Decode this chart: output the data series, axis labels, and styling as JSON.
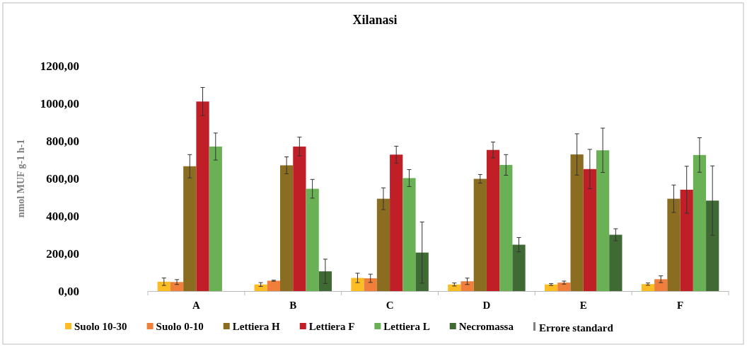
{
  "chart_data": {
    "type": "bar",
    "title": "Xilanasi",
    "ylabel": "nmol MUF g-1 h-1",
    "categories": [
      "A",
      "B",
      "C",
      "D",
      "E",
      "F"
    ],
    "series": [
      {
        "name": "Suolo 10-30",
        "color": "#fbbd23",
        "values": [
          50,
          35,
          70,
          35,
          35,
          37
        ],
        "errors": [
          20,
          10,
          25,
          8,
          5,
          6
        ]
      },
      {
        "name": "Suolo 0-10",
        "color": "#ef7f3a",
        "values": [
          48,
          55,
          68,
          52,
          45,
          63
        ],
        "errors": [
          13,
          3,
          22,
          17,
          8,
          18
        ]
      },
      {
        "name": "Lettiera H",
        "color": "#8b6d22",
        "values": [
          665,
          670,
          492,
          598,
          728,
          492
        ],
        "errors": [
          62,
          45,
          58,
          23,
          110,
          73
        ]
      },
      {
        "name": "Lettiera F",
        "color": "#c11f27",
        "values": [
          1010,
          770,
          727,
          752,
          650,
          540
        ],
        "errors": [
          75,
          50,
          45,
          42,
          105,
          125
        ]
      },
      {
        "name": "Lettiera L",
        "color": "#6ab155",
        "values": [
          770,
          545,
          602,
          672,
          750,
          725
        ],
        "errors": [
          72,
          50,
          45,
          55,
          118,
          92
        ]
      },
      {
        "name": "Necromassa",
        "color": "#3f6a33",
        "values": [
          null,
          105,
          205,
          247,
          300,
          482
        ],
        "errors": [
          null,
          65,
          163,
          38,
          32,
          185
        ]
      }
    ],
    "ylim": [
      0,
      1200
    ],
    "yticks": [
      {
        "value": 0,
        "label": "0,00"
      },
      {
        "value": 200,
        "label": "200,00"
      },
      {
        "value": 400,
        "label": "400,00"
      },
      {
        "value": 600,
        "label": "600,00"
      },
      {
        "value": 800,
        "label": "800,00"
      },
      {
        "value": 1000,
        "label": "1000,00"
      },
      {
        "value": 1200,
        "label": "1200,00"
      }
    ],
    "grid": false,
    "legend": "bottom",
    "annotations": [
      "Errore standard"
    ]
  }
}
